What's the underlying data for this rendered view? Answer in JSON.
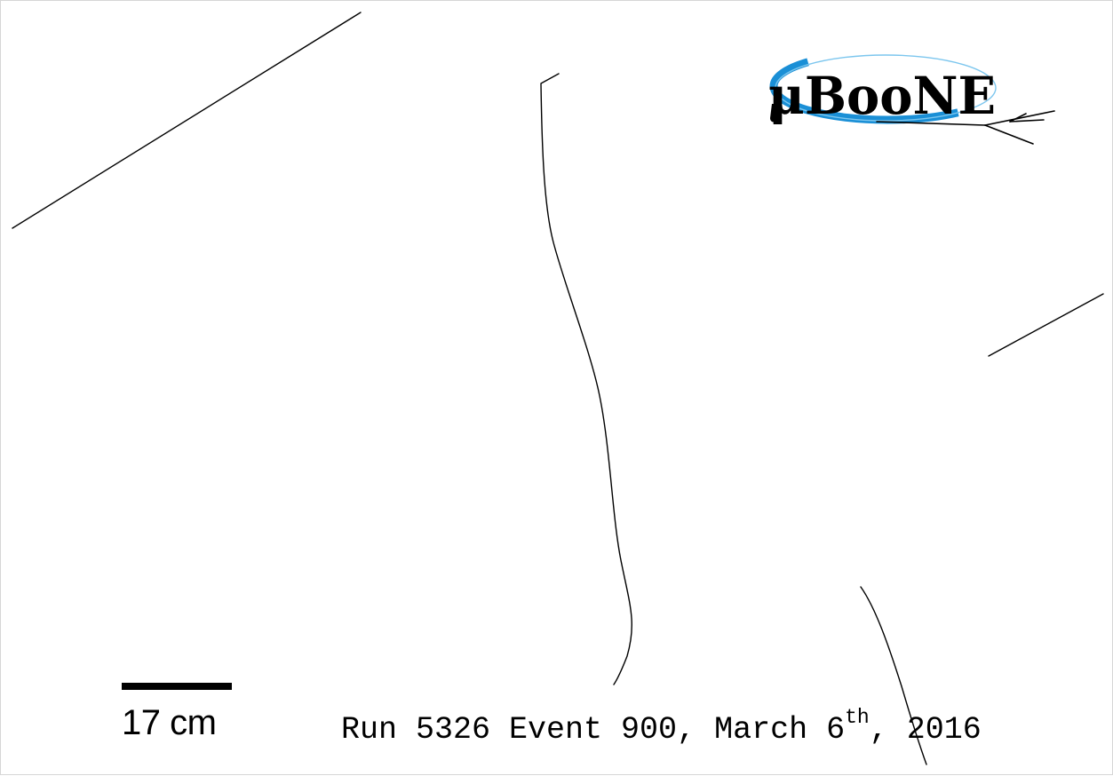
{
  "logo": {
    "text": "μBooNE",
    "colors": {
      "text": "#000000",
      "swoosh_dark": "#1a8fd6",
      "swoosh_light": "#7cc6ee"
    },
    "icon": "neutrino-interaction-logo"
  },
  "scale": {
    "label": "17 cm"
  },
  "caption": {
    "prefix": "Run 5326 Event 900, March 6",
    "superscript": "th",
    "suffix": ", 2016"
  },
  "colors": {
    "background": "#ffffff",
    "track": "#000000"
  }
}
